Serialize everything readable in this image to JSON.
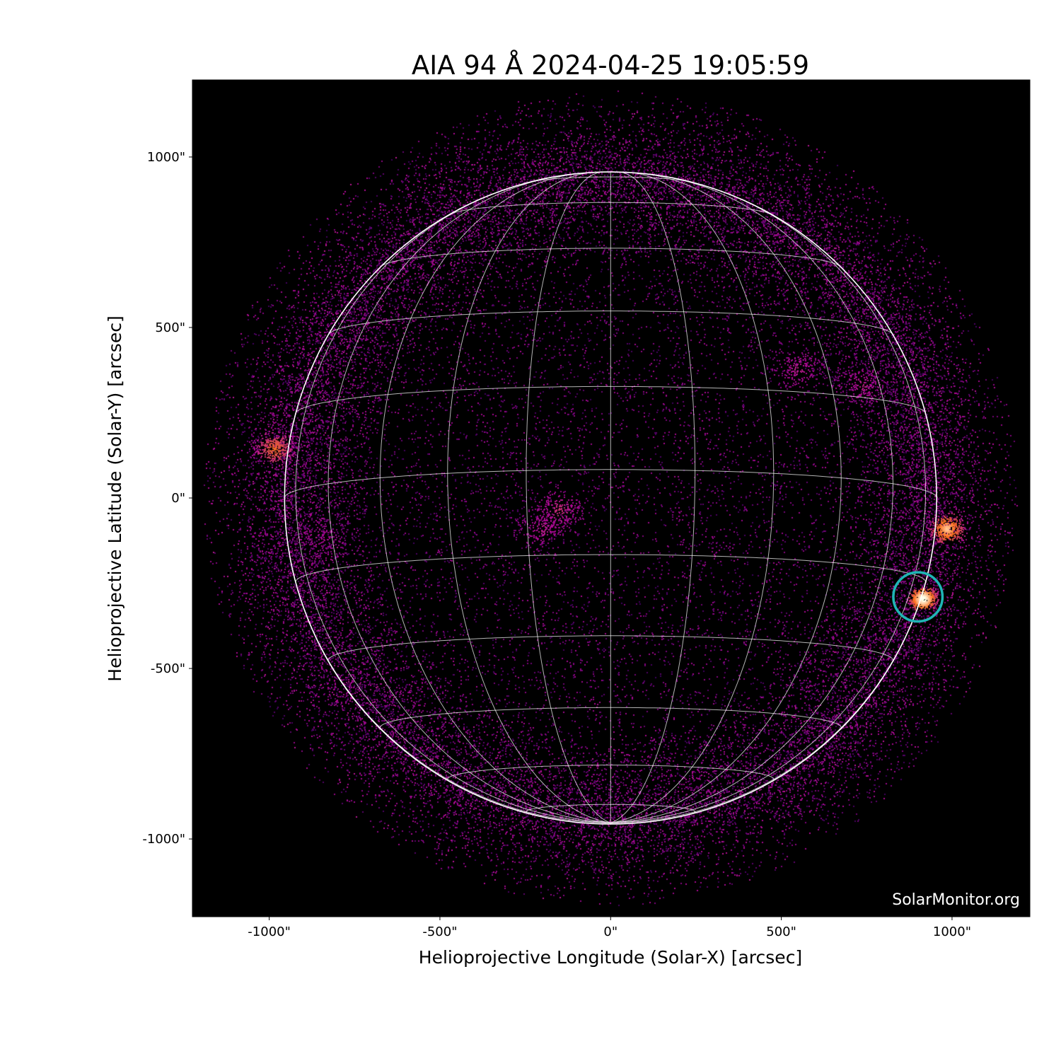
{
  "chart_data": {
    "type": "heatmap",
    "title": "AIA 94 Å 2024-04-25 19:05:59",
    "xlabel": "Helioprojective Longitude (Solar-X) [arcsec]",
    "ylabel": "Helioprojective Latitude (Solar-Y) [arcsec]",
    "xlim": [
      -1225,
      1228
    ],
    "ylim": [
      -1228,
      1226
    ],
    "x_ticks": [
      {
        "value": -1000,
        "label": "-1000\""
      },
      {
        "value": -500,
        "label": "-500\""
      },
      {
        "value": 0,
        "label": "0\""
      },
      {
        "value": 500,
        "label": "500\""
      },
      {
        "value": 1000,
        "label": "1000\""
      }
    ],
    "y_ticks": [
      {
        "value": 1000,
        "label": "1000\""
      },
      {
        "value": 500,
        "label": "500\""
      },
      {
        "value": 0,
        "label": "0\""
      },
      {
        "value": -500,
        "label": "-500\""
      },
      {
        "value": -1000,
        "label": "-1000\""
      }
    ],
    "colormap": "sdoaia94",
    "background_color": "#000000",
    "solar_radius_arcsec": 955,
    "grid_spacing_deg": 15,
    "grid_color": "#ffffff",
    "marker": {
      "shape": "circle",
      "x": 900,
      "y": -290,
      "radius": 72,
      "color": "#1fb5b5"
    },
    "bright_regions": [
      {
        "x": 915,
        "y": -295,
        "intensity": 1.0
      },
      {
        "x": 985,
        "y": -90,
        "intensity": 0.8
      },
      {
        "x": -985,
        "y": 145,
        "intensity": 0.6
      },
      {
        "x": -150,
        "y": -35,
        "intensity": 0.4
      },
      {
        "x": -200,
        "y": -90,
        "intensity": 0.35
      },
      {
        "x": 550,
        "y": 380,
        "intensity": 0.35
      },
      {
        "x": 740,
        "y": 330,
        "intensity": 0.35
      },
      {
        "x": -850,
        "y": -120,
        "intensity": 0.3
      }
    ],
    "watermark": "SolarMonitor.org"
  }
}
